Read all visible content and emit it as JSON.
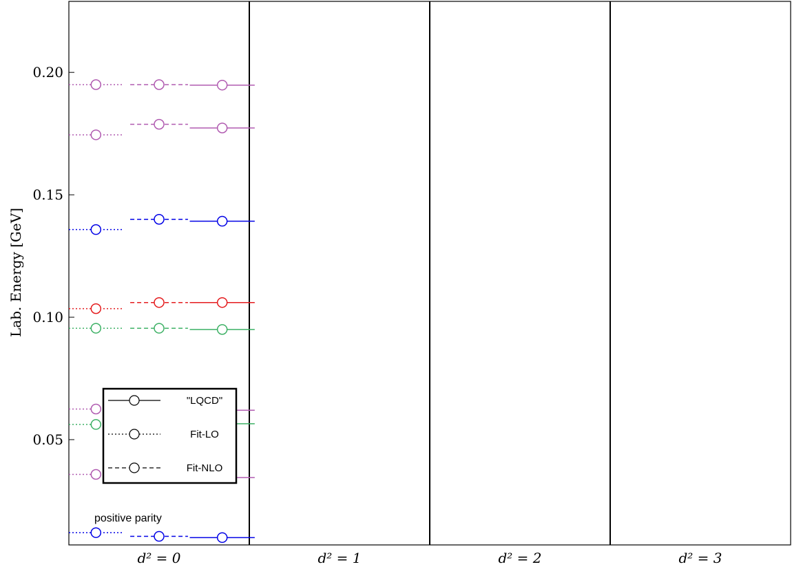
{
  "chart_data": {
    "type": "scatter",
    "ylabel": "Lab. Energy [GeV]",
    "ylim": [
      0.007,
      0.229
    ],
    "yticks": [
      0.05,
      0.1,
      0.15,
      0.2
    ],
    "ytick_labels": [
      "0.05",
      "0.10",
      "0.15",
      "0.20"
    ],
    "groups": [
      {
        "label": "d² = 0",
        "color": "#e41a1c"
      },
      {
        "label": "d² = 1",
        "color": "#0000e6"
      },
      {
        "label": "d² = 2",
        "color": "#b05ab0"
      },
      {
        "label": "d² = 3",
        "color": "#3cb064"
      }
    ],
    "series": [
      {
        "name": "Fit-LO",
        "linestyle": "dotted",
        "slot": 0,
        "levels": [
          [
            0.1035
          ],
          [
            0.1358,
            0.012
          ],
          [
            0.195,
            0.1745,
            0.0625,
            0.0358
          ],
          [
            0.0955,
            0.0562
          ]
        ]
      },
      {
        "name": "Fit-NLO",
        "linestyle": "dashed",
        "slot": 1,
        "levels": [
          [
            0.106
          ],
          [
            0.14,
            0.0105
          ],
          [
            0.195,
            0.1788,
            0.0625,
            0.0345
          ],
          [
            0.0955,
            0.0562
          ]
        ]
      },
      {
        "name": "\"LQCD\"",
        "linestyle": "solid",
        "slot": 2,
        "levels": [
          [
            0.106
          ],
          [
            0.1392,
            0.01
          ],
          [
            0.1948,
            0.1773,
            0.062,
            0.0345
          ],
          [
            0.095,
            0.0565
          ]
        ]
      }
    ],
    "legend": {
      "position": "lower-left",
      "entries": [
        {
          "label": "\"LQCD\"",
          "linestyle": "solid"
        },
        {
          "label": "Fit-LO",
          "linestyle": "dotted"
        },
        {
          "label": "Fit-NLO",
          "linestyle": "dashed"
        }
      ]
    },
    "annotation": "positive parity"
  }
}
